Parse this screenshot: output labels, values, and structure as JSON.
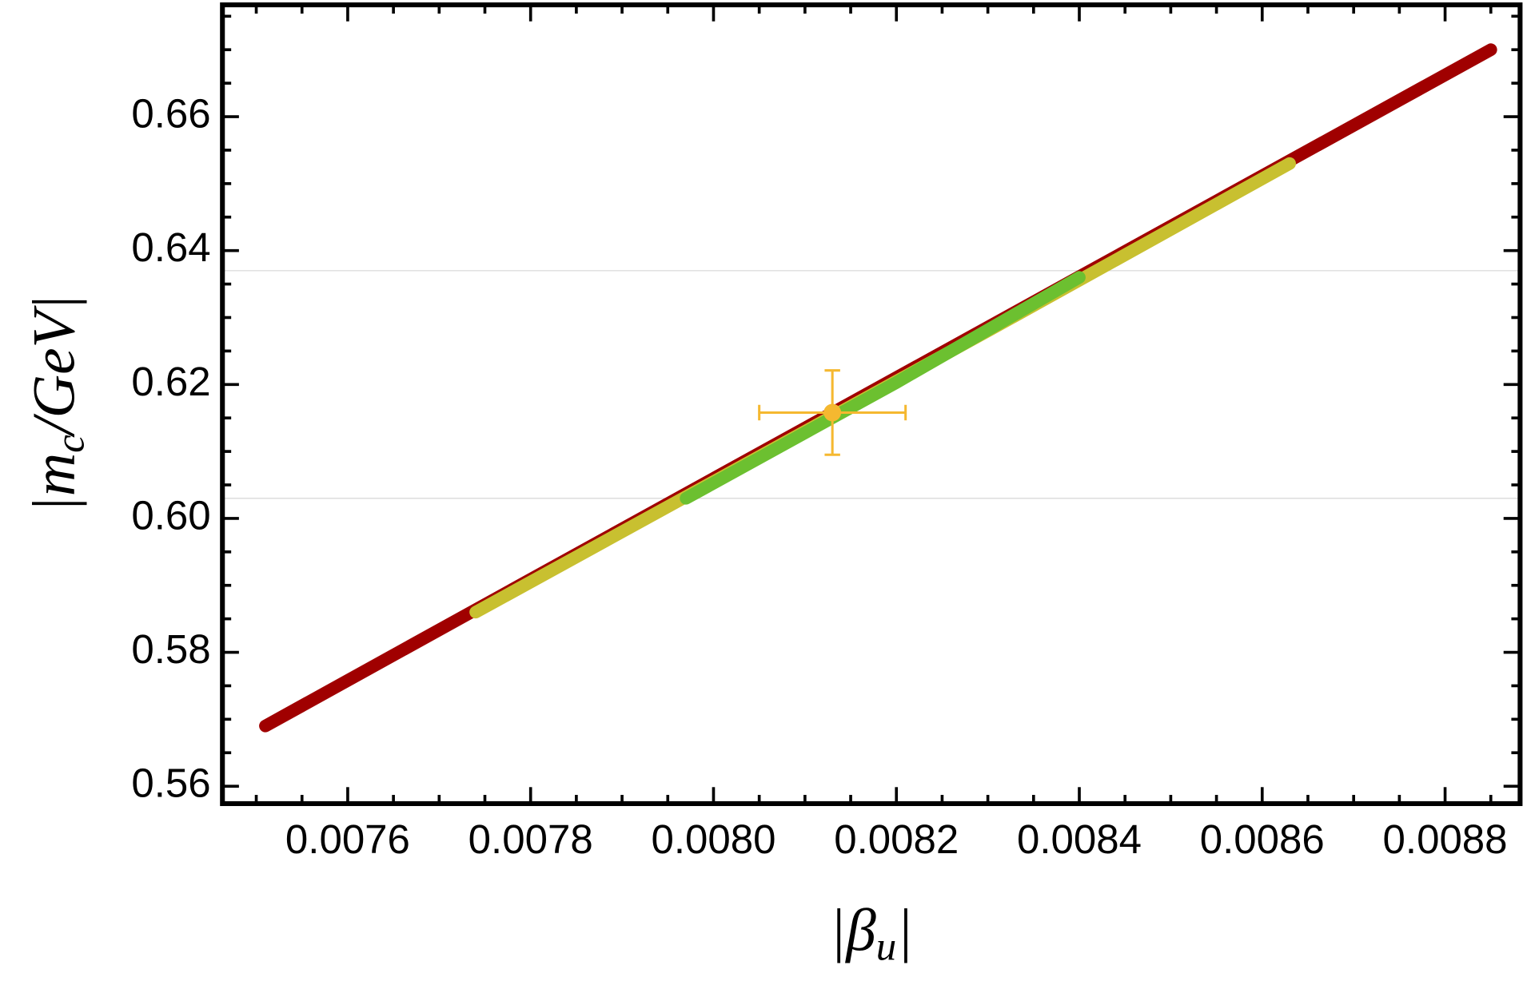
{
  "chart_data": {
    "type": "scatter",
    "xlabel": [
      "|β",
      "u",
      "|"
    ],
    "ylabel": [
      "|m",
      "c",
      "/GeV|"
    ],
    "xlim": [
      0.007463,
      0.008882
    ],
    "ylim": [
      0.5574,
      0.6767
    ],
    "xticks": [
      0.0076,
      0.0078,
      {
        "value": 0.008,
        "label": "0.0080"
      },
      0.0082,
      0.0084,
      0.0086,
      0.0088
    ],
    "yticks": [
      0.56,
      0.58,
      {
        "value": 0.6,
        "label": "0.60"
      },
      0.62,
      0.64,
      0.66
    ],
    "hlines": [
      0.637,
      0.603
    ],
    "hline_color": "#dddddd",
    "series": [
      {
        "color": "#a00000",
        "x": [
          0.00751,
          0.0078,
          0.0081,
          0.0084,
          0.00885
        ],
        "values": [
          0.569,
          0.5909,
          0.6135,
          0.6361,
          0.67
        ]
      },
      {
        "color": "#c8c030",
        "x": [
          0.00774,
          0.008,
          0.0083,
          0.00863
        ],
        "values": [
          0.586,
          0.6055,
          0.628,
          0.653
        ]
      },
      {
        "color": "#6cc030",
        "x": [
          0.00797,
          0.0082,
          0.0084
        ],
        "values": [
          0.603,
          0.6203,
          0.636
        ]
      }
    ],
    "point": {
      "color": "#f5b830",
      "x": 0.00813,
      "y": 0.6158,
      "xerr": 8e-05,
      "yerr": 0.0063
    }
  }
}
